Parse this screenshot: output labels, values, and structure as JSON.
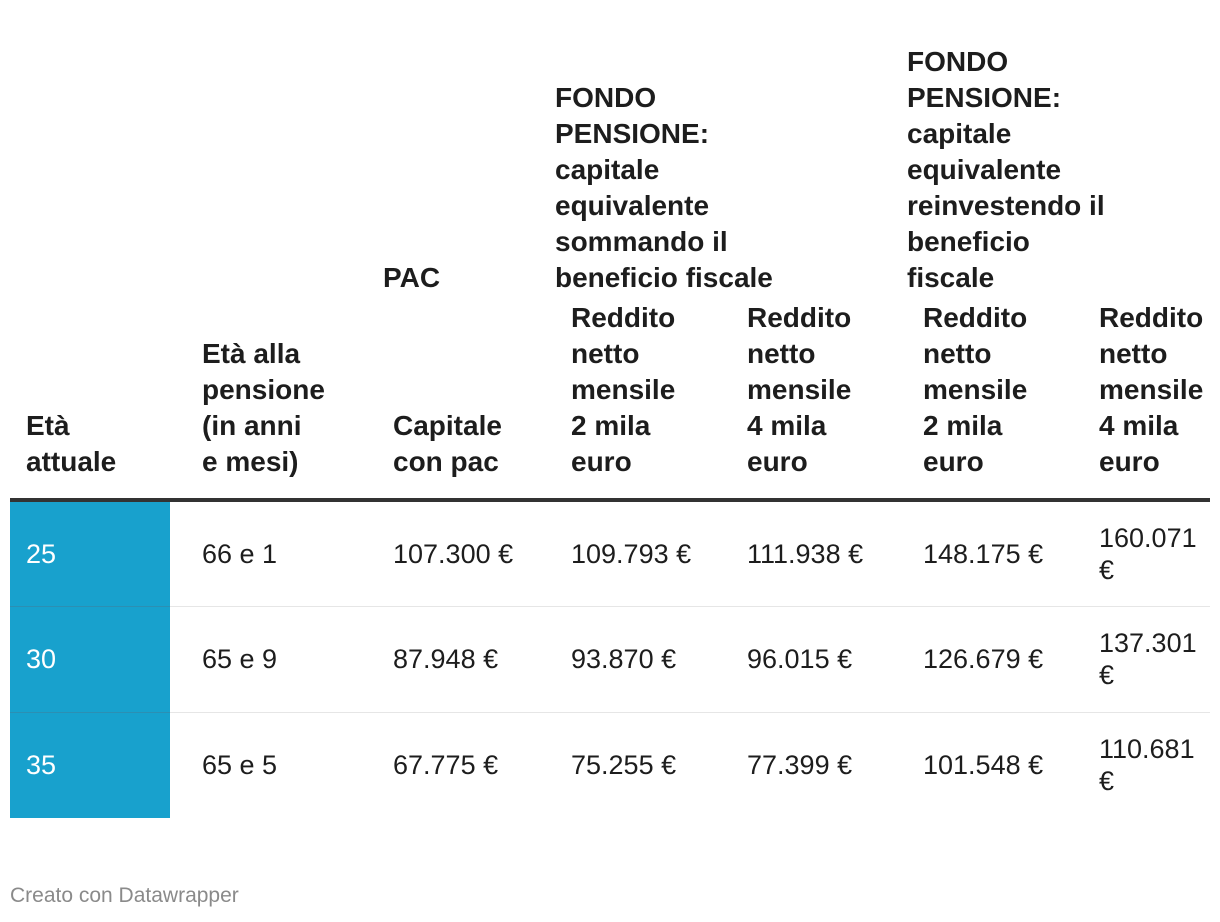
{
  "chart_data": {
    "type": "table",
    "spanners": {
      "pac": "PAC",
      "fondo_sommando": "FONDO PENSIONE: capitale equivalente sommando il beneficio fiscale",
      "fondo_reinvestendo": "FONDO PENSIONE: capitale equivalente reinvestendo il beneficio fiscale"
    },
    "spanner_lines": {
      "pac": [
        "PAC"
      ],
      "fondo_sommando": [
        "FONDO",
        "PENSIONE:",
        "capitale",
        "equivalente",
        "sommando il",
        "beneficio fiscale"
      ],
      "fondo_reinvestendo": [
        "FONDO",
        "PENSIONE:",
        "capitale",
        "equivalente",
        "reinvestendo il",
        "beneficio",
        "fiscale"
      ]
    },
    "columns": [
      "Età attuale",
      "Età alla pensione (in anni e mesi)",
      "Capitale con pac",
      "Reddito netto mensile 2 mila euro",
      "Reddito netto mensile 4 mila euro",
      "Reddito netto mensile 2 mila euro",
      "Reddito netto mensile 4 mila euro"
    ],
    "column_lines": [
      [
        "Età",
        "attuale"
      ],
      [
        "Età alla",
        "pensione",
        "(in anni",
        "e mesi)"
      ],
      [
        "Capitale",
        "con pac"
      ],
      [
        "Reddito",
        "netto",
        "mensile",
        "2 mila",
        "euro"
      ],
      [
        "Reddito",
        "netto",
        "mensile",
        "4 mila",
        "euro"
      ],
      [
        "Reddito",
        "netto",
        "mensile",
        "2 mila",
        "euro"
      ],
      [
        "Reddito",
        "netto",
        "mensile",
        "4 mila",
        "euro"
      ]
    ],
    "rows": [
      [
        "25",
        "66 e 1",
        "107.300 €",
        "109.793 €",
        "111.938 €",
        "148.175 €",
        "160.071 €"
      ],
      [
        "30",
        "65 e 9",
        "87.948 €",
        "93.870 €",
        "96.015 €",
        "126.679 €",
        "137.301 €"
      ],
      [
        "35",
        "65 e 5",
        "67.775 €",
        "75.255 €",
        "77.399 €",
        "101.548 €",
        "110.681 €"
      ]
    ],
    "highlight_color": "#18a1cd"
  },
  "footer": "Creato con Datawrapper"
}
